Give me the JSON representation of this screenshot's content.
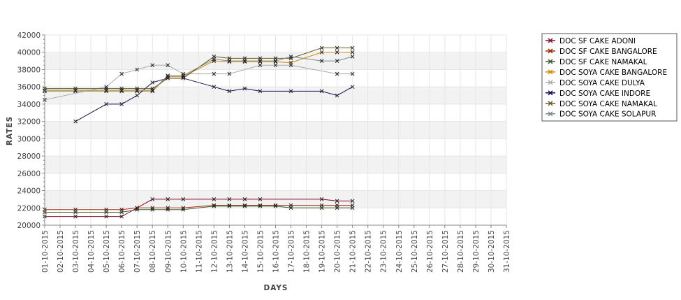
{
  "chart_data": {
    "type": "line",
    "xlabel": "DAYS",
    "ylabel": "RATES",
    "ylim": [
      20000,
      42000
    ],
    "y_ticks": [
      20000,
      22000,
      24000,
      26000,
      28000,
      30000,
      32000,
      34000,
      36000,
      38000,
      40000,
      42000
    ],
    "y_tick_labels": [
      "20000",
      "22000",
      "24000",
      "26000",
      "28000",
      "30000",
      "32000",
      "34000",
      "36000",
      "38000",
      "40000",
      "42000"
    ],
    "x_tick_labels": [
      "01-10-2015",
      "02-10-2015",
      "03-10-2015",
      "04-10-2015",
      "05-10-2015",
      "06-10-2015",
      "07-10-2015",
      "08-10-2015",
      "09-10-2015",
      "10-10-2015",
      "11-10-2015",
      "12-10-2015",
      "13-10-2015",
      "14-10-2015",
      "15-10-2015",
      "16-10-2015",
      "17-10-2015",
      "18-10-2015",
      "19-10-2015",
      "20-10-2015",
      "21-10-2015",
      "22-10-2015",
      "23-10-2015",
      "24-10-2015",
      "25-10-2015",
      "26-10-2015",
      "27-10-2015",
      "28-10-2015",
      "29-10-2015",
      "30-10-2015",
      "31-10-2015"
    ],
    "grid": true,
    "legend_position": "right",
    "series": [
      {
        "name": "DOC SF CAKE ADONI",
        "color": "#8b0a2a",
        "points": [
          [
            "01-10-2015",
            21000
          ],
          [
            "03-10-2015",
            21000
          ],
          [
            "05-10-2015",
            21000
          ],
          [
            "06-10-2015",
            21000
          ],
          [
            "07-10-2015",
            22000
          ],
          [
            "08-10-2015",
            23000
          ],
          [
            "09-10-2015",
            23000
          ],
          [
            "10-10-2015",
            23000
          ],
          [
            "12-10-2015",
            23000
          ],
          [
            "13-10-2015",
            23000
          ],
          [
            "14-10-2015",
            23000
          ],
          [
            "15-10-2015",
            23000
          ],
          [
            "19-10-2015",
            23000
          ],
          [
            "20-10-2015",
            22800
          ],
          [
            "21-10-2015",
            22800
          ]
        ]
      },
      {
        "name": "DOC SF CAKE BANGALORE",
        "color": "#a52a00",
        "points": [
          [
            "01-10-2015",
            21800
          ],
          [
            "03-10-2015",
            21800
          ],
          [
            "05-10-2015",
            21800
          ],
          [
            "06-10-2015",
            21800
          ],
          [
            "07-10-2015",
            22000
          ],
          [
            "08-10-2015",
            22000
          ],
          [
            "09-10-2015",
            22000
          ],
          [
            "10-10-2015",
            22000
          ],
          [
            "12-10-2015",
            22300
          ],
          [
            "13-10-2015",
            22300
          ],
          [
            "14-10-2015",
            22300
          ],
          [
            "15-10-2015",
            22300
          ],
          [
            "16-10-2015",
            22300
          ],
          [
            "17-10-2015",
            22300
          ],
          [
            "19-10-2015",
            22300
          ],
          [
            "20-10-2015",
            22300
          ],
          [
            "21-10-2015",
            22300
          ]
        ]
      },
      {
        "name": "DOC SF CAKE NAMAKAL",
        "color": "#3b5e2b",
        "points": [
          [
            "01-10-2015",
            21500
          ],
          [
            "03-10-2015",
            21500
          ],
          [
            "05-10-2015",
            21500
          ],
          [
            "06-10-2015",
            21500
          ],
          [
            "07-10-2015",
            21800
          ],
          [
            "08-10-2015",
            21800
          ],
          [
            "09-10-2015",
            21800
          ],
          [
            "10-10-2015",
            21800
          ],
          [
            "12-10-2015",
            22200
          ],
          [
            "13-10-2015",
            22200
          ],
          [
            "14-10-2015",
            22200
          ],
          [
            "15-10-2015",
            22200
          ],
          [
            "16-10-2015",
            22200
          ],
          [
            "17-10-2015",
            22000
          ],
          [
            "19-10-2015",
            22000
          ],
          [
            "20-10-2015",
            22000
          ],
          [
            "21-10-2015",
            22000
          ]
        ]
      },
      {
        "name": "DOC SOYA CAKE BANGALORE",
        "color": "#d28a00",
        "points": [
          [
            "01-10-2015",
            35500
          ],
          [
            "03-10-2015",
            35500
          ],
          [
            "05-10-2015",
            35500
          ],
          [
            "06-10-2015",
            35500
          ],
          [
            "07-10-2015",
            35500
          ],
          [
            "08-10-2015",
            35500
          ],
          [
            "09-10-2015",
            37200
          ],
          [
            "10-10-2015",
            37200
          ],
          [
            "12-10-2015",
            39000
          ],
          [
            "13-10-2015",
            38900
          ],
          [
            "14-10-2015",
            38900
          ],
          [
            "15-10-2015",
            38900
          ],
          [
            "16-10-2015",
            38900
          ],
          [
            "17-10-2015",
            38800
          ],
          [
            "19-10-2015",
            40000
          ],
          [
            "20-10-2015",
            40000
          ],
          [
            "21-10-2015",
            40000
          ]
        ]
      },
      {
        "name": "DOC SOYA CAKE DULYA",
        "color": "#aaaaaa",
        "points": [
          [
            "01-10-2015",
            34500
          ],
          [
            "05-10-2015",
            36000
          ],
          [
            "06-10-2015",
            37500
          ],
          [
            "07-10-2015",
            38000
          ],
          [
            "08-10-2015",
            38500
          ],
          [
            "09-10-2015",
            38500
          ],
          [
            "10-10-2015",
            37500
          ],
          [
            "12-10-2015",
            37500
          ],
          [
            "13-10-2015",
            37500
          ],
          [
            "15-10-2015",
            38500
          ],
          [
            "16-10-2015",
            38500
          ],
          [
            "17-10-2015",
            38500
          ],
          [
            "20-10-2015",
            37500
          ],
          [
            "21-10-2015",
            37500
          ]
        ]
      },
      {
        "name": "DOC SOYA CAKE INDORE",
        "color": "#1e0a5a",
        "points": [
          [
            "03-10-2015",
            32000
          ],
          [
            "05-10-2015",
            34000
          ],
          [
            "06-10-2015",
            34000
          ],
          [
            "07-10-2015",
            35000
          ],
          [
            "08-10-2015",
            36500
          ],
          [
            "09-10-2015",
            37000
          ],
          [
            "10-10-2015",
            37000
          ],
          [
            "12-10-2015",
            36000
          ],
          [
            "13-10-2015",
            35500
          ],
          [
            "14-10-2015",
            35800
          ],
          [
            "15-10-2015",
            35500
          ],
          [
            "17-10-2015",
            35500
          ],
          [
            "19-10-2015",
            35500
          ],
          [
            "20-10-2015",
            35000
          ],
          [
            "21-10-2015",
            36000
          ]
        ]
      },
      {
        "name": "DOC SOYA CAKE NAMAKAL",
        "color": "#6b5a2a",
        "points": [
          [
            "01-10-2015",
            35800
          ],
          [
            "03-10-2015",
            35800
          ],
          [
            "05-10-2015",
            35800
          ],
          [
            "06-10-2015",
            35800
          ],
          [
            "07-10-2015",
            35800
          ],
          [
            "08-10-2015",
            35800
          ],
          [
            "09-10-2015",
            37000
          ],
          [
            "10-10-2015",
            37000
          ],
          [
            "12-10-2015",
            39500
          ],
          [
            "13-10-2015",
            39300
          ],
          [
            "14-10-2015",
            39300
          ],
          [
            "15-10-2015",
            39300
          ],
          [
            "16-10-2015",
            39300
          ],
          [
            "17-10-2015",
            39300
          ],
          [
            "19-10-2015",
            40500
          ],
          [
            "20-10-2015",
            40500
          ],
          [
            "21-10-2015",
            40500
          ]
        ]
      },
      {
        "name": "DOC SOYA CAKE SOLAPUR",
        "color": "#7a8a8a",
        "points": [
          [
            "01-10-2015",
            35600
          ],
          [
            "03-10-2015",
            35600
          ],
          [
            "05-10-2015",
            35600
          ],
          [
            "06-10-2015",
            35600
          ],
          [
            "07-10-2015",
            35600
          ],
          [
            "08-10-2015",
            35600
          ],
          [
            "09-10-2015",
            37300
          ],
          [
            "10-10-2015",
            37300
          ],
          [
            "12-10-2015",
            39200
          ],
          [
            "13-10-2015",
            39000
          ],
          [
            "14-10-2015",
            39000
          ],
          [
            "15-10-2015",
            39000
          ],
          [
            "16-10-2015",
            39000
          ],
          [
            "17-10-2015",
            39500
          ],
          [
            "19-10-2015",
            39000
          ],
          [
            "20-10-2015",
            39000
          ],
          [
            "21-10-2015",
            39500
          ]
        ]
      }
    ]
  }
}
